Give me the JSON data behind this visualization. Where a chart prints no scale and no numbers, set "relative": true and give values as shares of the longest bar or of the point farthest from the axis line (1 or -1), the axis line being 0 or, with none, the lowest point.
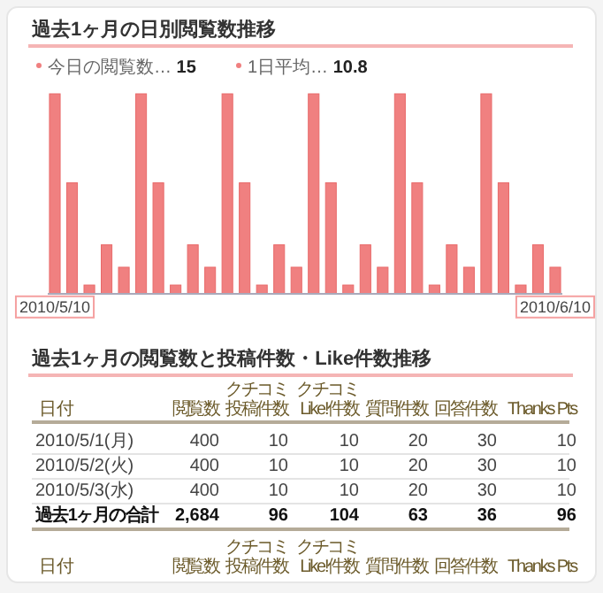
{
  "chart_data": [
    {
      "type": "bar",
      "title": "過去1ヶ月の日別閲覧数推移",
      "relative": true,
      "color": "#f08080",
      "annotations": [
        "今日の閲覧数… 15",
        "1日平均… 10.8"
      ],
      "categories": [
        "2010/5/10",
        null,
        null,
        null,
        null,
        null,
        null,
        null,
        null,
        null,
        null,
        null,
        null,
        null,
        null,
        null,
        null,
        null,
        null,
        null,
        null,
        null,
        null,
        null,
        null,
        null,
        null,
        null,
        null,
        "2010/6/10"
      ],
      "values": [
        1,
        0.555,
        0.044,
        0.245,
        0.133,
        1,
        0.555,
        0.044,
        0.245,
        0.133,
        1,
        0.555,
        0.044,
        0.245,
        0.133,
        1,
        0.555,
        0.044,
        0.245,
        0.133,
        1,
        0.555,
        0.044,
        0.245,
        0.133,
        1,
        0.555,
        0.044,
        0.245,
        0.133
      ]
    },
    {
      "type": "other",
      "title": "過去1ヶ月の閲覧数と投稿件数・Like件数推移",
      "xlabel": "日付",
      "data_labels": true,
      "categories": [
        "2010/5/1(月)",
        "2010/5/2(火)",
        "2010/5/3(水)",
        "過去1ヶ月の合計"
      ],
      "series": [
        {
          "name": "閲覧数",
          "values": [
            400,
            400,
            400,
            2684
          ],
          "value_labels": [
            "400",
            "400",
            "400",
            "2,684"
          ]
        },
        {
          "name": "クチコミ投稿件数",
          "values": [
            10,
            10,
            10,
            96
          ]
        },
        {
          "name": "クチコミLike!件数",
          "values": [
            10,
            10,
            10,
            104
          ]
        },
        {
          "name": "質問件数",
          "values": [
            20,
            20,
            20,
            63
          ]
        },
        {
          "name": "回答件数",
          "values": [
            30,
            30,
            30,
            36
          ]
        },
        {
          "name": "Thanks Pts",
          "values": [
            10,
            10,
            10,
            96
          ]
        }
      ]
    }
  ]
}
